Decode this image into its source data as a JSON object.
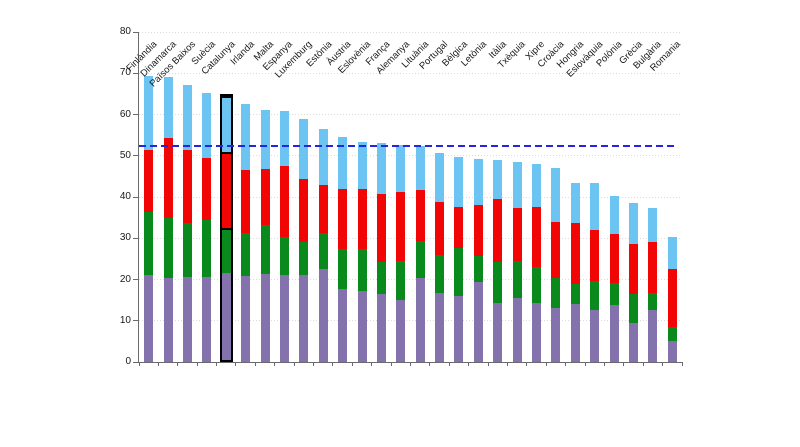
{
  "chart_data": {
    "type": "bar",
    "subtype": "stacked",
    "title": "",
    "xlabel": "",
    "ylabel": "",
    "ylim": [
      0,
      80
    ],
    "y_ticks": [
      "0",
      "10",
      "20",
      "30",
      "40",
      "50",
      "60",
      "70",
      "80"
    ],
    "grid": "horizontal-dotted",
    "legend": "none",
    "categories": [
      "Finlàndia",
      "Dinamarca",
      "Països Baixos",
      "Suècia",
      "Catalunya",
      "Irlanda",
      "Malta",
      "Espanya",
      "Luxemburg",
      "Estònia",
      "Àustria",
      "Eslovènia",
      "França",
      "Alemanya",
      "Lituània",
      "Portugal",
      "Bèlgica",
      "Letònia",
      "Itàlia",
      "Txèquia",
      "Xipre",
      "Croàcia",
      "Hongria",
      "Eslovàquia",
      "Polònia",
      "Grècia",
      "Bulgària",
      "Romania"
    ],
    "series": [
      {
        "name": "segment-bottom-purple",
        "color": "#8472AD",
        "values": [
          21.2,
          20.4,
          20.6,
          20.7,
          21.2,
          20.9,
          21.3,
          21.0,
          21.2,
          22.5,
          17.7,
          17.1,
          16.4,
          15.1,
          20.3,
          16.8,
          16.0,
          19.4,
          14.3,
          15.5,
          14.3,
          13.1,
          14.1,
          12.7,
          13.9,
          9.5,
          12.6,
          5.2
        ]
      },
      {
        "name": "segment-green",
        "color": "#0A8A1D",
        "values": [
          15.2,
          14.4,
          13.0,
          13.7,
          10.8,
          10.3,
          11.8,
          9.4,
          7.8,
          8.8,
          9.6,
          10.2,
          7.9,
          9.3,
          9.1,
          9.2,
          11.7,
          6.4,
          9.9,
          8.9,
          8.8,
          7.3,
          4.9,
          6.9,
          5.2,
          6.9,
          4.1,
          3.2
        ]
      },
      {
        "name": "segment-red",
        "color": "#F20505",
        "values": [
          15.1,
          19.5,
          17.7,
          15.1,
          18.5,
          15.4,
          13.8,
          17.2,
          15.3,
          11.6,
          14.6,
          14.6,
          16.4,
          16.9,
          12.3,
          12.7,
          10.0,
          12.3,
          15.3,
          12.9,
          14.4,
          13.6,
          14.7,
          12.5,
          11.9,
          12.1,
          12.3,
          14.2
        ]
      },
      {
        "name": "segment-top-lightblue",
        "color": "#6BC4F2",
        "values": [
          17.9,
          14.8,
          15.9,
          15.8,
          13.6,
          16.0,
          14.2,
          13.3,
          14.6,
          13.5,
          12.6,
          11.4,
          12.4,
          11.3,
          10.7,
          11.9,
          12.1,
          11.1,
          9.4,
          11.2,
          10.5,
          13.0,
          9.8,
          11.2,
          9.2,
          10.0,
          8.4,
          7.7
        ]
      }
    ],
    "highlighted_category": "Catalunya",
    "reference_line": {
      "value": 52.3,
      "color": "#2525E0",
      "style": "dashed"
    }
  }
}
